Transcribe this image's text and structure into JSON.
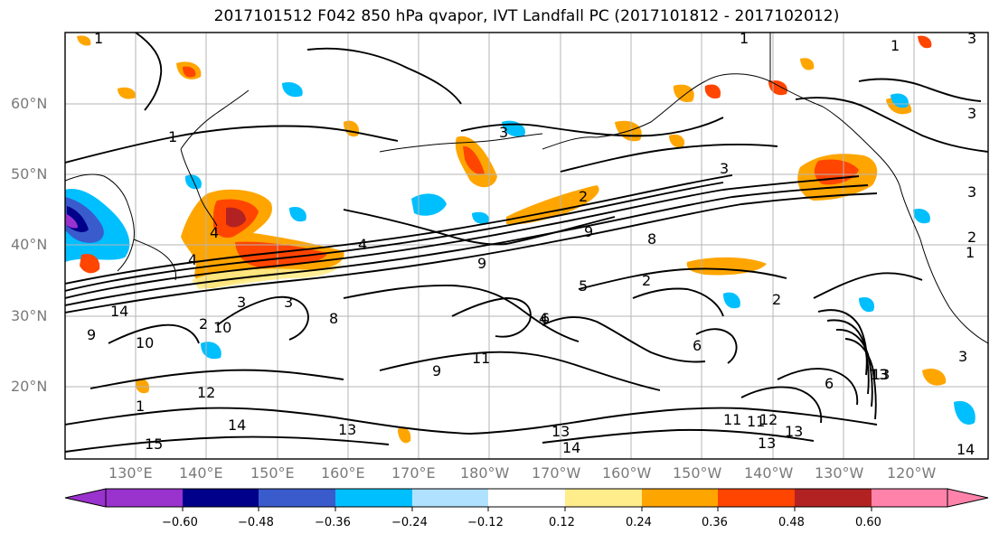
{
  "title": "2017101512 F042 850 hPa qvapor, IVT Landfall PC (2017101812 - 2017102012)",
  "lat_labels": [
    "60°N",
    "50°N",
    "40°N",
    "30°N",
    "20°N"
  ],
  "lon_labels": [
    "130°E",
    "140°E",
    "150°E",
    "160°E",
    "170°E",
    "180°W",
    "170°W",
    "160°W",
    "150°W",
    "140°W",
    "130°W",
    "120°W"
  ],
  "colorbar": {
    "tick_labels": [
      "−0.60",
      "−0.48",
      "−0.36",
      "−0.24",
      "−0.12",
      "0.12",
      "0.24",
      "0.36",
      "0.48",
      "0.60"
    ],
    "colors": [
      "#9a32cd",
      "#00008b",
      "#3a5bcc",
      "#00bfff",
      "#b0e2ff",
      "#ffffff",
      "#ffec8b",
      "#ffa500",
      "#ff4500",
      "#b22222",
      "#ff82ab"
    ]
  },
  "contour_labels": [
    "1",
    "1",
    "1",
    "3",
    "3",
    "1",
    "3",
    "2",
    "4",
    "4",
    "8",
    "2",
    "3",
    "9",
    "9",
    "8",
    "10",
    "9",
    "11",
    "6",
    "2",
    "5",
    "13",
    "13",
    "14",
    "13",
    "11",
    "11",
    "12",
    "13",
    "14",
    "14",
    "15",
    "12",
    "14",
    "10",
    "9",
    "13",
    "4",
    "6",
    "1",
    "3",
    "3",
    "2",
    "13",
    "6",
    "1",
    "2",
    "3",
    "3",
    "4"
  ]
}
